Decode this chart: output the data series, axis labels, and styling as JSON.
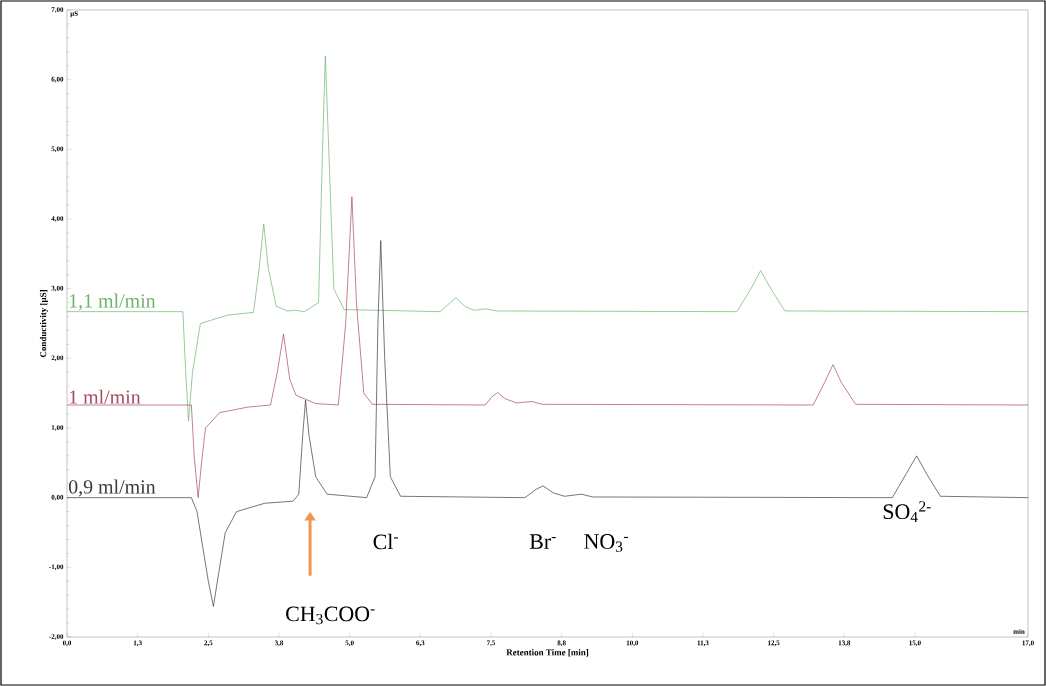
{
  "chart_data": {
    "type": "line",
    "xlabel": "Retention Time [min]",
    "ylabel": "Conductivity [µS]",
    "annotations": [
      "µS",
      "min",
      "CH$_{3}$COO$^{-}$",
      "Cl$^{-}$",
      "Br$^{-}$",
      "NO$_{3}$$^{-}$",
      "SO$_{4}$$^{2-}$"
    ],
    "series": [
      {
        "name": "1,1 ml/min",
        "color": "#6cb46c",
        "x": [
          0,
          2.05,
          2.1,
          2.15,
          2.22,
          2.36,
          2.84,
          3.3,
          3.4,
          3.48,
          3.56,
          3.7,
          3.9,
          4.04,
          4.2,
          4.45,
          4.52,
          4.57,
          4.63,
          4.72,
          4.9,
          6.6,
          6.78,
          6.88,
          7.05,
          7.2,
          7.41,
          7.6,
          11.85,
          12.1,
          12.27,
          12.45,
          12.7,
          17
        ],
        "values": [
          2.67,
          2.67,
          1.8,
          1.1,
          1.8,
          2.5,
          2.62,
          2.66,
          3.3,
          3.93,
          3.3,
          2.75,
          2.68,
          2.69,
          2.67,
          2.8,
          5.0,
          6.34,
          5.0,
          3.0,
          2.7,
          2.67,
          2.8,
          2.87,
          2.74,
          2.69,
          2.71,
          2.68,
          2.67,
          3.0,
          3.26,
          3.0,
          2.68,
          2.67
        ]
      },
      {
        "name": "1 ml/min",
        "color": "#a8485a",
        "x": [
          0,
          2.2,
          2.25,
          2.32,
          2.38,
          2.45,
          2.7,
          3.2,
          3.6,
          3.72,
          3.83,
          3.94,
          4.05,
          4.2,
          4.4,
          4.8,
          4.93,
          5.04,
          5.12,
          5.25,
          5.4,
          7.4,
          7.52,
          7.62,
          7.75,
          7.95,
          8.23,
          8.4,
          13.2,
          13.4,
          13.55,
          13.7,
          13.95,
          17
        ],
        "values": [
          1.33,
          1.33,
          0.6,
          0.0,
          0.5,
          1.0,
          1.22,
          1.3,
          1.33,
          1.8,
          2.35,
          1.7,
          1.47,
          1.42,
          1.35,
          1.33,
          2.5,
          4.32,
          2.8,
          1.5,
          1.34,
          1.33,
          1.45,
          1.51,
          1.42,
          1.36,
          1.38,
          1.34,
          1.33,
          1.65,
          1.91,
          1.65,
          1.34,
          1.33
        ]
      },
      {
        "name": "0,9 ml/min",
        "color": "#3a3a3a",
        "x": [
          0,
          2.2,
          2.3,
          2.5,
          2.59,
          2.68,
          2.8,
          3.0,
          3.5,
          4.0,
          4.1,
          4.17,
          4.22,
          4.28,
          4.4,
          4.6,
          5.3,
          5.45,
          5.5,
          5.55,
          5.62,
          5.72,
          5.9,
          8.1,
          8.3,
          8.42,
          8.6,
          8.8,
          9.0,
          9.1,
          9.3,
          14.6,
          14.85,
          15.03,
          15.2,
          15.45,
          17
        ],
        "values": [
          0,
          0,
          -0.2,
          -1.2,
          -1.56,
          -1.1,
          -0.5,
          -0.2,
          -0.08,
          -0.05,
          0.05,
          0.9,
          1.4,
          0.9,
          0.3,
          0.05,
          0,
          0.3,
          2.5,
          3.69,
          2.0,
          0.3,
          0.02,
          0,
          0.12,
          0.17,
          0.07,
          0.02,
          0.04,
          0.05,
          0.01,
          0,
          0.35,
          0.6,
          0.35,
          0.02,
          0
        ]
      }
    ],
    "xlim": [
      0,
      17
    ],
    "xticks": [
      {
        "value": 0,
        "label": "0,0"
      },
      {
        "value": 1.25,
        "label": "1,3"
      },
      {
        "value": 2.5,
        "label": "2,5"
      },
      {
        "value": 3.75,
        "label": "3,8"
      },
      {
        "value": 5,
        "label": "5,0"
      },
      {
        "value": 6.25,
        "label": "6,3"
      },
      {
        "value": 7.5,
        "label": "7,5"
      },
      {
        "value": 8.75,
        "label": "8,8"
      },
      {
        "value": 10,
        "label": "10,0"
      },
      {
        "value": 11.25,
        "label": "11,3"
      },
      {
        "value": 12.5,
        "label": "12,5"
      },
      {
        "value": 13.75,
        "label": "13,8"
      },
      {
        "value": 15,
        "label": "15,0"
      },
      {
        "value": 17,
        "label": "17,0"
      }
    ],
    "ylim": [
      -2,
      7
    ],
    "yticks": [
      {
        "value": -2,
        "label": "-2,00"
      },
      {
        "value": -1,
        "label": "-1,00"
      },
      {
        "value": 0,
        "label": "0,00"
      },
      {
        "value": 1,
        "label": "1,00"
      },
      {
        "value": 2,
        "label": "2,00"
      },
      {
        "value": 3,
        "label": "3,00"
      },
      {
        "value": 4,
        "label": "4,00"
      },
      {
        "value": 5,
        "label": "5,00"
      },
      {
        "value": 6,
        "label": "6,00"
      },
      {
        "value": 7,
        "label": "7,00"
      }
    ],
    "line_style": "solid",
    "marker": "none",
    "grid": false,
    "legend": false
  }
}
